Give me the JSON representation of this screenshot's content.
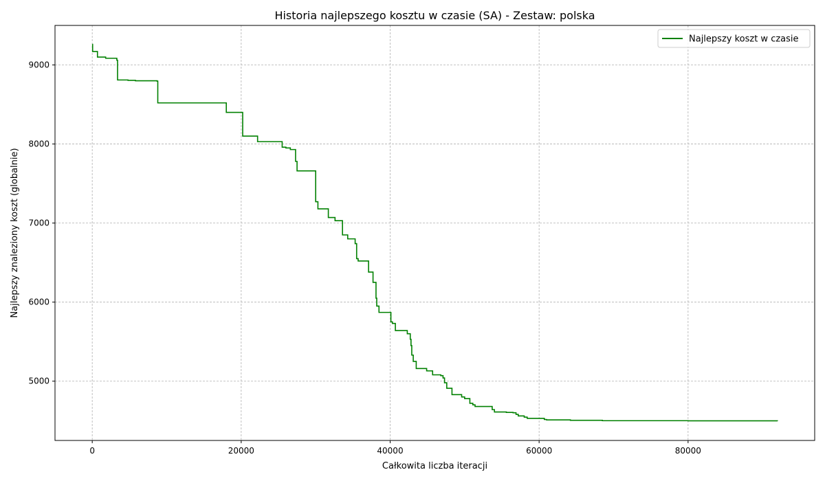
{
  "chart_data": {
    "type": "line",
    "title": "Historia najlepszego kosztu w czasie (SA) - Zestaw: polska",
    "xlabel": "Całkowita liczba iteracji",
    "ylabel": "Najlepszy znaleziony koszt (globalnie)",
    "xlim": [
      -5000,
      97000
    ],
    "ylim": [
      4250,
      9500
    ],
    "xticks": [
      0,
      20000,
      40000,
      60000,
      80000
    ],
    "yticks": [
      5000,
      6000,
      7000,
      8000,
      9000
    ],
    "grid": true,
    "legend_position": "top-right",
    "series": [
      {
        "name": "Najlepszy koszt w czasie",
        "color": "#008000",
        "step": true,
        "points": [
          [
            0,
            9260
          ],
          [
            50,
            9170
          ],
          [
            700,
            9100
          ],
          [
            1800,
            9085
          ],
          [
            3300,
            9060
          ],
          [
            3400,
            8810
          ],
          [
            4800,
            8805
          ],
          [
            5800,
            8800
          ],
          [
            8700,
            8795
          ],
          [
            8800,
            8520
          ],
          [
            17900,
            8520
          ],
          [
            18000,
            8400
          ],
          [
            20100,
            8400
          ],
          [
            20200,
            8100
          ],
          [
            22200,
            8030
          ],
          [
            25500,
            7960
          ],
          [
            26000,
            7950
          ],
          [
            26600,
            7930
          ],
          [
            27300,
            7780
          ],
          [
            27500,
            7660
          ],
          [
            29800,
            7660
          ],
          [
            30000,
            7270
          ],
          [
            30300,
            7180
          ],
          [
            31700,
            7070
          ],
          [
            32600,
            7030
          ],
          [
            33600,
            6850
          ],
          [
            34300,
            6800
          ],
          [
            35300,
            6740
          ],
          [
            35500,
            6550
          ],
          [
            35700,
            6520
          ],
          [
            37100,
            6380
          ],
          [
            37700,
            6250
          ],
          [
            38100,
            6050
          ],
          [
            38200,
            5950
          ],
          [
            38500,
            5870
          ],
          [
            40100,
            5750
          ],
          [
            40300,
            5730
          ],
          [
            40700,
            5640
          ],
          [
            42300,
            5600
          ],
          [
            42700,
            5530
          ],
          [
            42800,
            5450
          ],
          [
            42900,
            5330
          ],
          [
            43100,
            5250
          ],
          [
            43500,
            5160
          ],
          [
            44900,
            5130
          ],
          [
            45700,
            5080
          ],
          [
            46800,
            5070
          ],
          [
            47100,
            5040
          ],
          [
            47300,
            4980
          ],
          [
            47600,
            4910
          ],
          [
            48300,
            4830
          ],
          [
            49600,
            4800
          ],
          [
            50000,
            4780
          ],
          [
            50700,
            4720
          ],
          [
            51100,
            4700
          ],
          [
            51400,
            4680
          ],
          [
            53700,
            4640
          ],
          [
            54000,
            4610
          ],
          [
            55600,
            4605
          ],
          [
            56500,
            4600
          ],
          [
            56900,
            4580
          ],
          [
            57200,
            4560
          ],
          [
            58000,
            4545
          ],
          [
            58400,
            4530
          ],
          [
            60700,
            4515
          ],
          [
            61000,
            4510
          ],
          [
            64200,
            4505
          ],
          [
            68500,
            4500
          ],
          [
            80000,
            4498
          ],
          [
            92000,
            4496
          ]
        ]
      }
    ]
  }
}
